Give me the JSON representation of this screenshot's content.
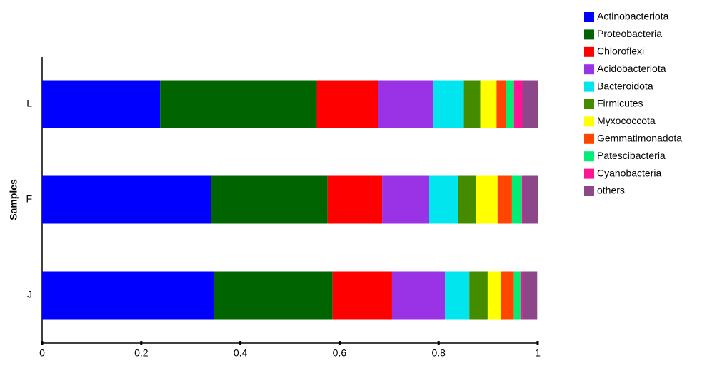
{
  "chart_data": {
    "type": "stacked-barh",
    "categories": [
      "L",
      "F",
      "J"
    ],
    "y_label": "Samples",
    "xlim": [
      0,
      1
    ],
    "xticks": [
      0,
      0.2,
      0.4,
      0.6,
      0.8,
      1
    ],
    "legend": "right",
    "series": [
      {
        "name": "Actinobacteriota",
        "color": "#0000ff",
        "values": [
          0.238,
          0.341,
          0.347
        ]
      },
      {
        "name": "Proteobacteria",
        "color": "#006400",
        "values": [
          0.316,
          0.235,
          0.239
        ]
      },
      {
        "name": "Chloroflexi",
        "color": "#ff0000",
        "values": [
          0.124,
          0.11,
          0.12
        ]
      },
      {
        "name": "Acidobacteriota",
        "color": "#9a32e6",
        "values": [
          0.112,
          0.095,
          0.107
        ]
      },
      {
        "name": "Bacteroidota",
        "color": "#00e5ee",
        "values": [
          0.061,
          0.059,
          0.049
        ]
      },
      {
        "name": "Firmicutes",
        "color": "#458b00",
        "values": [
          0.033,
          0.036,
          0.037
        ]
      },
      {
        "name": "Myxococcota",
        "color": "#ffff00",
        "values": [
          0.033,
          0.043,
          0.027
        ]
      },
      {
        "name": "Gemmatimonadota",
        "color": "#ff4500",
        "values": [
          0.019,
          0.029,
          0.026
        ]
      },
      {
        "name": "Patescibacteria",
        "color": "#00ee76",
        "values": [
          0.016,
          0.02,
          0.014
        ]
      },
      {
        "name": "Cyanobacteria",
        "color": "#ff1493",
        "values": [
          0.017,
          0.003,
          0.004
        ]
      },
      {
        "name": "others",
        "color": "#8b4789",
        "values": [
          0.032,
          0.029,
          0.029
        ]
      }
    ]
  }
}
